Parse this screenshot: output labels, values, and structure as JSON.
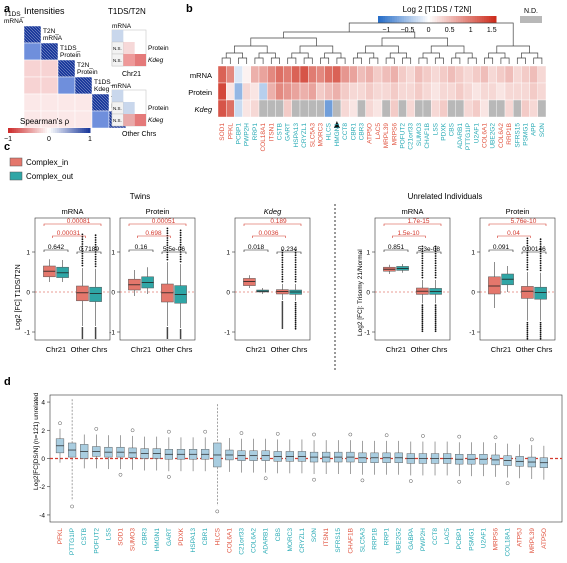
{
  "panel_labels": [
    "a",
    "b",
    "c",
    "d"
  ],
  "colors": {
    "complex_in": "#e4776c",
    "complex_out": "#2fa6a6",
    "box_d": "#a9cde0",
    "sig_red": "#d43a2f",
    "nd_gray": "#b8b8b8",
    "dendrogram": "#444444",
    "gene_red": "#e0533f",
    "gene_teal": "#28aab5"
  },
  "panel_a": {
    "title": "Intensities",
    "row_labels": [
      "T1DS_\nmRNA",
      "T2N_\nmRNA",
      "T1DS_\nProtein",
      "T2N_\nProtein",
      "T1DS_\nKdeg",
      "T2N_\nKdeg"
    ],
    "correlation_matrix": [
      [
        1.0,
        0.75,
        0.35,
        0.35,
        0.1,
        0.1
      ],
      [
        0.75,
        1.0,
        0.35,
        0.35,
        0.1,
        0.1
      ],
      [
        0.35,
        0.35,
        1.0,
        0.95,
        0.15,
        0.15
      ],
      [
        0.35,
        0.35,
        0.95,
        1.0,
        0.15,
        0.15
      ],
      [
        0.1,
        0.1,
        0.15,
        0.15,
        1.0,
        0.85
      ],
      [
        0.1,
        0.1,
        0.15,
        0.15,
        0.85,
        1.0
      ]
    ],
    "colorbar_label": "Spearman's ρ",
    "colorbar_ticks": [
      "−1",
      "0",
      "1"
    ],
    "right_title": "T1DS/T2N",
    "mini_labels": [
      "mRNA",
      "Protein",
      "Kdeg",
      "N.S."
    ],
    "group_labels": [
      "Chr21",
      "Other Chrs"
    ]
  },
  "panel_b": {
    "colorbar_title": "Log 2 [T1DS / T2N]",
    "colorbar_ticks": [
      "−1",
      "−0.5",
      "0",
      "0.5",
      "1",
      "1.5"
    ],
    "nd_label": "N.D.",
    "row_labels": [
      "mRNA",
      "Protein",
      "Kdeg"
    ],
    "genes": [
      "SOD1",
      "PFKL",
      "PCBP1",
      "PWP2H",
      "RRP1",
      "COL18A1",
      "ITSN1",
      "CSTB",
      "GART",
      "HSPA13",
      "CRYZL1",
      "SLC5A3",
      "MORC3",
      "HLCS",
      "HMGN1",
      "CCT8",
      "CBR1",
      "CBR3",
      "ATP5O",
      "LAC5",
      "MRPL39",
      "MRPS6",
      "POFUT2",
      "C21orf33",
      "SUMO3",
      "CHAF1B",
      "LSS",
      "PDXK",
      "CBS",
      "ADARB1",
      "PTTG1IP",
      "U2AF1",
      "COL6A1",
      "UBE2G2",
      "COL6A2",
      "RRP1B",
      "SFRS15",
      "PSMG1",
      "APP",
      "SON"
    ],
    "gene_colors": [
      "r",
      "r",
      "t",
      "t",
      "t",
      "r",
      "r",
      "t",
      "t",
      "t",
      "t",
      "r",
      "r",
      "t",
      "t",
      "t",
      "t",
      "t",
      "r",
      "r",
      "r",
      "r",
      "t",
      "t",
      "t",
      "t",
      "t",
      "t",
      "t",
      "t",
      "t",
      "t",
      "r",
      "t",
      "r",
      "r",
      "t",
      "t",
      "t",
      "t"
    ],
    "mRNA": [
      1.2,
      0.9,
      -0.2,
      0.1,
      0.6,
      0.7,
      0.9,
      1.1,
      1.0,
      1.2,
      1.3,
      1.0,
      0.9,
      1.1,
      1.2,
      0.8,
      0.7,
      0.5,
      0.6,
      0.4,
      0.5,
      0.6,
      0.4,
      0.3,
      0.5,
      0.4,
      0.3,
      0.4,
      0.5,
      0.4,
      0.3,
      0.4,
      0.5,
      0.3,
      0.4,
      0.5,
      0.3,
      0.4,
      0.5,
      0.3
    ],
    "Protein": [
      1.4,
      0.2,
      -0.6,
      0.3,
      0.2,
      -0.4,
      0.6,
      0.9,
      0.8,
      0.7,
      0.6,
      0.7,
      0.4,
      0.5,
      0.6,
      0.4,
      0.3,
      0.3,
      0.4,
      0.3,
      0.3,
      0.4,
      0.3,
      0.3,
      0.4,
      0.3,
      0.2,
      0.3,
      0.3,
      0.4,
      0.3,
      0.2,
      0.3,
      0.3,
      0.2,
      0.3,
      0.3,
      0.3,
      0.4,
      0.3
    ],
    "Kdeg": [
      1.3,
      1.1,
      -0.3,
      0.2,
      0.3,
      null,
      null,
      null,
      0.4,
      null,
      null,
      null,
      null,
      -0.8,
      null,
      0.3,
      0.2,
      null,
      0.3,
      0.2,
      null,
      0.4,
      null,
      0.3,
      null,
      null,
      0.3,
      0.4,
      null,
      null,
      0.3,
      0.4,
      0.2,
      null,
      null,
      0.3,
      null,
      0.4,
      0.3,
      null
    ],
    "arrow_gene": "HMGN1"
  },
  "panel_c": {
    "legend": [
      "Complex_in",
      "Complex_out"
    ],
    "twins_title": "Twins",
    "unrelated_title": "Unrelated Individuals",
    "ylabel_left": "Log2 [FC] T1DS/T2N",
    "ylabel_right": "Log2 [FC]: Trisomy 21/Normal",
    "categories": [
      "Chr21",
      "Other Chrs"
    ],
    "panels": [
      {
        "title": "mRNA",
        "ylim": [
          -1.2,
          1.6
        ],
        "chr21_in": [
          0.25,
          0.38,
          0.52,
          0.65,
          0.82
        ],
        "chr21_out": [
          0.25,
          0.36,
          0.48,
          0.62,
          0.8
        ],
        "other_in": [
          -0.85,
          -0.22,
          -0.02,
          0.15,
          0.6
        ],
        "other_out": [
          -0.85,
          -0.24,
          -0.04,
          0.12,
          0.58
        ],
        "p_red": [
          "0.00081",
          "0.00031"
        ],
        "p_black": [
          "0.642",
          "0.7189"
        ]
      },
      {
        "title": "Protein",
        "ylim": [
          -1.2,
          1.6
        ],
        "chr21_in": [
          -0.1,
          0.05,
          0.18,
          0.32,
          0.55
        ],
        "chr21_out": [
          -0.05,
          0.1,
          0.24,
          0.38,
          0.62
        ],
        "other_in": [
          -0.85,
          -0.25,
          -0.02,
          0.2,
          0.75
        ],
        "other_out": [
          -0.9,
          -0.28,
          -0.06,
          0.16,
          0.7
        ],
        "p_red": [
          "0.00051",
          "0.698"
        ],
        "p_black": [
          "0.16",
          "5.5e-06"
        ]
      },
      {
        "title": "Kdeg",
        "ylim": [
          -1.2,
          1.6
        ],
        "chr21_in": [
          0.1,
          0.16,
          0.26,
          0.34,
          0.42
        ],
        "chr21_out": [
          -0.05,
          0,
          0.02,
          0.05,
          0.1
        ],
        "other_in": [
          -0.2,
          -0.05,
          0.01,
          0.06,
          0.2
        ],
        "other_out": [
          -0.22,
          -0.06,
          0,
          0.05,
          0.2
        ],
        "p_red": [
          "0.189",
          "0.0036"
        ],
        "p_black": [
          "0.018",
          "0.234"
        ]
      },
      {
        "title": "mRNA",
        "ylim": [
          -1.2,
          1.6
        ],
        "chr21_in": [
          0.45,
          0.52,
          0.57,
          0.62,
          0.68
        ],
        "chr21_out": [
          0.48,
          0.54,
          0.59,
          0.64,
          0.7
        ],
        "other_in": [
          -0.28,
          -0.06,
          0.02,
          0.1,
          0.3
        ],
        "other_out": [
          -0.28,
          -0.06,
          0.01,
          0.09,
          0.3
        ],
        "p_red": [
          "1.7e-15",
          "1.5e-10"
        ],
        "p_black": [
          "0.851",
          "5.3e-08"
        ]
      },
      {
        "title": "Protein",
        "ylim": [
          -1.2,
          1.6
        ],
        "chr21_in": [
          -0.4,
          -0.05,
          0.15,
          0.38,
          0.75
        ],
        "chr21_out": [
          0,
          0.18,
          0.32,
          0.45,
          0.65
        ],
        "other_in": [
          -0.72,
          -0.16,
          0.02,
          0.14,
          0.5
        ],
        "other_out": [
          -0.72,
          -0.18,
          -0.01,
          0.12,
          0.48
        ],
        "p_red": [
          "5.76e-10",
          "0.04"
        ],
        "p_black": [
          "0.091",
          "0.00146"
        ]
      }
    ]
  },
  "panel_d": {
    "ylabel": "Log2[FC]DS/N] (n=121) unrelated",
    "ylim": [
      -4.5,
      4.5
    ],
    "genes": [
      "PFKL",
      "PTTG1IP",
      "CSTB",
      "POFUT2",
      "LSS",
      "SOD1",
      "SUMO3",
      "CBR3",
      "HMGN1",
      "GART",
      "PDXK",
      "HSPA13",
      "CBR1",
      "HLCS",
      "COL6A1",
      "C21orf33",
      "COL6A2",
      "ADARB1",
      "CBS",
      "MORC3",
      "CRYZL1",
      "SON",
      "ITSN1",
      "SFRS15",
      "CHAF1B",
      "SLC5A3",
      "RRP1B",
      "RRP1",
      "UBE2G2",
      "GABPA",
      "PWP2H",
      "CCT8",
      "LAC5",
      "PCBP1",
      "PSMG1",
      "U2AF1",
      "MRPS6",
      "COL18A1",
      "ATP5J",
      "MRPL39",
      "ATP5O"
    ],
    "gene_colors": [
      "r",
      "t",
      "t",
      "t",
      "t",
      "r",
      "r",
      "t",
      "t",
      "t",
      "r",
      "t",
      "t",
      "r",
      "r",
      "t",
      "t",
      "t",
      "t",
      "t",
      "t",
      "t",
      "r",
      "t",
      "r",
      "t",
      "t",
      "t",
      "t",
      "t",
      "t",
      "t",
      "t",
      "t",
      "t",
      "t",
      "r",
      "t",
      "r",
      "r",
      "r"
    ],
    "medians": [
      0.9,
      0.6,
      0.5,
      0.5,
      0.45,
      0.45,
      0.4,
      0.35,
      0.35,
      0.3,
      0.3,
      0.3,
      0.3,
      0.25,
      0.25,
      0.2,
      0.2,
      0.2,
      0.15,
      0.15,
      0.15,
      0.1,
      0.1,
      0.1,
      0.1,
      0.05,
      0.05,
      0.05,
      0.05,
      0,
      0,
      0,
      0,
      -0.05,
      -0.05,
      -0.05,
      -0.1,
      -0.15,
      -0.2,
      -0.25,
      -0.3
    ]
  }
}
